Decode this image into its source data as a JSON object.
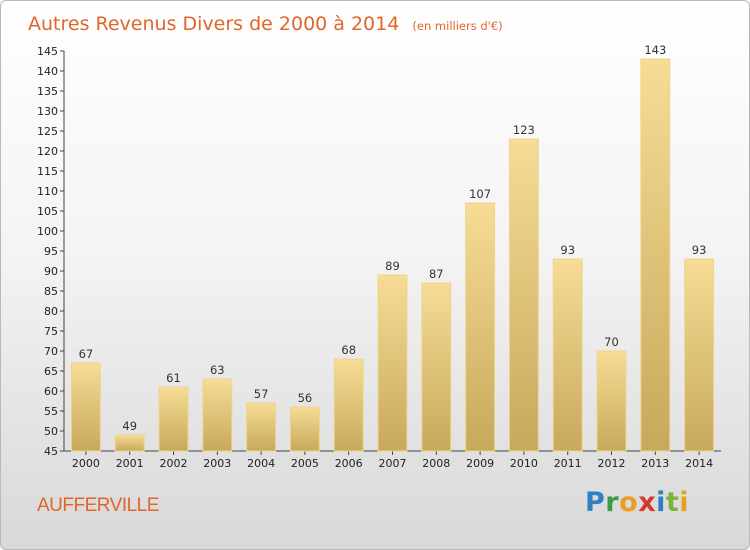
{
  "title": "Autres Revenus Divers de 2000 à 2014",
  "unit_note": "(en milliers d'€)",
  "commune": "AUFFERVILLE",
  "brand": {
    "letters": [
      "P",
      "r",
      "o",
      "x",
      "i",
      "t",
      "i"
    ]
  },
  "colors": {
    "title": "#e2652a",
    "bar_light": "#f6dc95",
    "bar_dark": "#c7a95c"
  },
  "chart_data": {
    "type": "bar",
    "categories": [
      "2000",
      "2001",
      "2002",
      "2003",
      "2004",
      "2005",
      "2006",
      "2007",
      "2008",
      "2009",
      "2010",
      "2011",
      "2012",
      "2013",
      "2014"
    ],
    "values": [
      67,
      49,
      61,
      63,
      57,
      56,
      68,
      89,
      87,
      107,
      123,
      93,
      70,
      143,
      93
    ],
    "data_labels": [
      "67",
      "49",
      "61",
      "63",
      "57",
      "56",
      "68",
      "89",
      "87",
      "107",
      "123",
      "93",
      "70",
      "143",
      "93"
    ],
    "ylim": [
      45,
      145
    ],
    "yticks": [
      45,
      50,
      55,
      60,
      65,
      70,
      75,
      80,
      85,
      90,
      95,
      100,
      105,
      110,
      115,
      120,
      125,
      130,
      135,
      140,
      145
    ],
    "grid": false,
    "xlabel": "",
    "ylabel": ""
  }
}
